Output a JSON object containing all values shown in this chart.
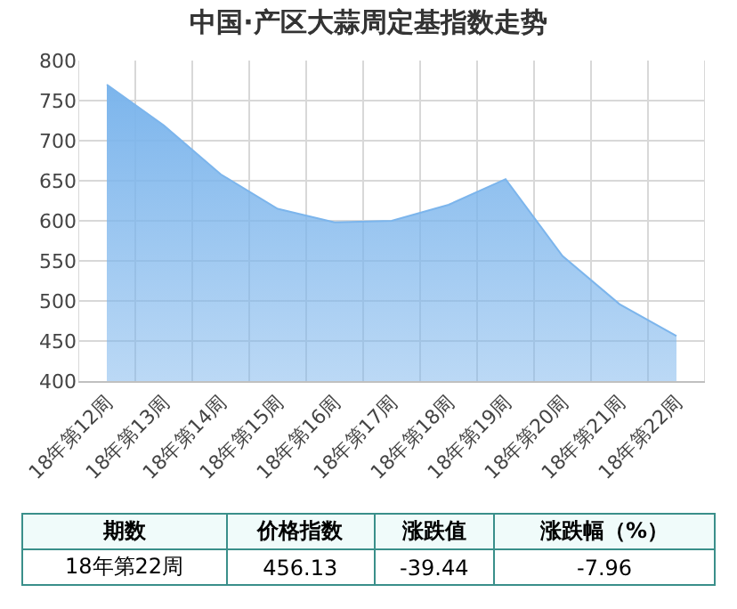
{
  "chart_data": {
    "type": "area",
    "title": "中国·产区大蒜周定基指数走势",
    "categories": [
      "18年第12周",
      "18年第13周",
      "18年第14周",
      "18年第15周",
      "18年第16周",
      "18年第17周",
      "18年第18周",
      "18年第19周",
      "18年第20周",
      "18年第21周",
      "18年第22周"
    ],
    "values": [
      770,
      719,
      658,
      615,
      598,
      600,
      620,
      652,
      556,
      496,
      456.13
    ],
    "color": "#7cb5ec",
    "ylim": [
      400,
      800
    ],
    "yticks": [
      400,
      450,
      500,
      550,
      600,
      650,
      700,
      750,
      800
    ],
    "grid": true,
    "annotations": [
      "期数",
      "价格指数",
      "涨跌值",
      "涨跌幅（%）",
      "18年第22周",
      "456.13",
      "-39.44",
      "-7.96"
    ]
  }
}
